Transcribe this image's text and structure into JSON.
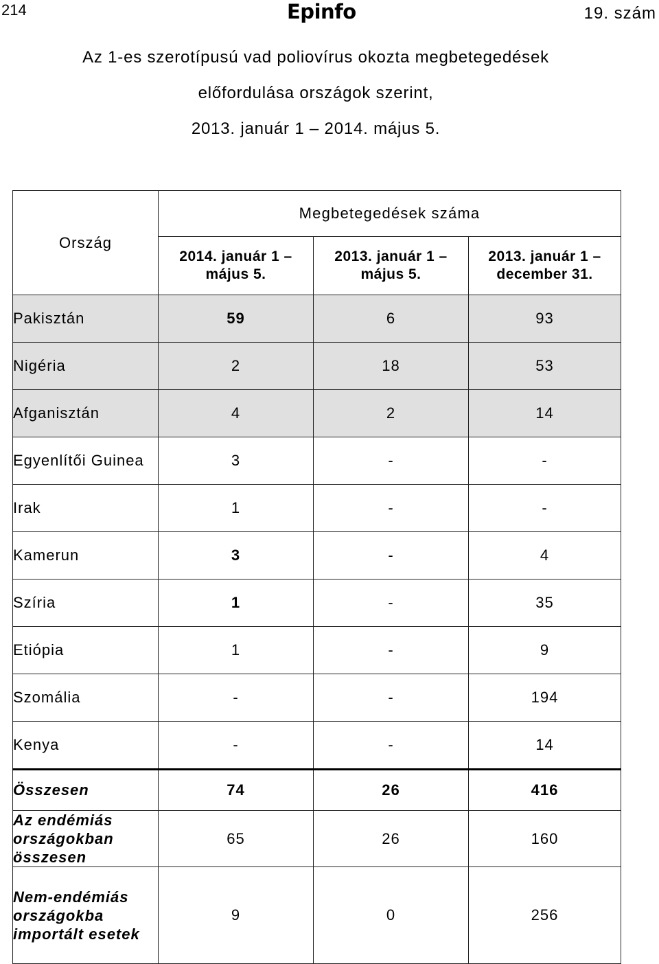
{
  "header": {
    "page_number": "214",
    "journal_logo": "Epinfo",
    "issue": "19. szám"
  },
  "title_lines": [
    "Az 1-es szerotípusú vad poliovírus okozta megbetegedések",
    "előfordulása országok szerint,",
    "2013. január 1 – 2014. május 5."
  ],
  "table": {
    "country_header": "Ország",
    "group_header": "Megbetegedések száma",
    "period_headers": [
      [
        "2014. január 1 –",
        "május 5."
      ],
      [
        "2013. január 1 –",
        "május 5."
      ],
      [
        "2013. január 1 –",
        "december 31."
      ]
    ],
    "rows": [
      {
        "country": "Pakisztán",
        "values": [
          "59",
          "6",
          "93"
        ],
        "shaded": true,
        "bold_first": true
      },
      {
        "country": "Nigéria",
        "values": [
          "2",
          "18",
          "53"
        ],
        "shaded": true,
        "bold_first": false
      },
      {
        "country": "Afganisztán",
        "values": [
          "4",
          "2",
          "14"
        ],
        "shaded": true,
        "bold_first": false
      },
      {
        "country": "Egyenlítői Guinea",
        "values": [
          "3",
          "-",
          "-"
        ],
        "shaded": false,
        "bold_first": false
      },
      {
        "country": "Irak",
        "values": [
          "1",
          "-",
          "-"
        ],
        "shaded": false,
        "bold_first": false
      },
      {
        "country": "Kamerun",
        "values": [
          "3",
          "-",
          "4"
        ],
        "shaded": false,
        "bold_first": true
      },
      {
        "country": "Szíria",
        "values": [
          "1",
          "-",
          "35"
        ],
        "shaded": false,
        "bold_first": true
      },
      {
        "country": "Etiópia",
        "values": [
          "1",
          "-",
          "9"
        ],
        "shaded": false,
        "bold_first": false
      },
      {
        "country": "Szomália",
        "values": [
          "-",
          "-",
          "194"
        ],
        "shaded": false,
        "bold_first": false
      },
      {
        "country": "Kenya",
        "values": [
          "-",
          "-",
          "14"
        ],
        "shaded": false,
        "bold_first": false
      }
    ],
    "total": {
      "label": "Összesen",
      "values": [
        "74",
        "26",
        "416"
      ]
    },
    "endemic_total": {
      "label": "Az endémiás országokban összesen",
      "values": [
        "65",
        "26",
        "160"
      ]
    },
    "imported": {
      "label": "Nem-endémiás országokba importált esetek",
      "values": [
        "9",
        "0",
        "256"
      ]
    }
  }
}
